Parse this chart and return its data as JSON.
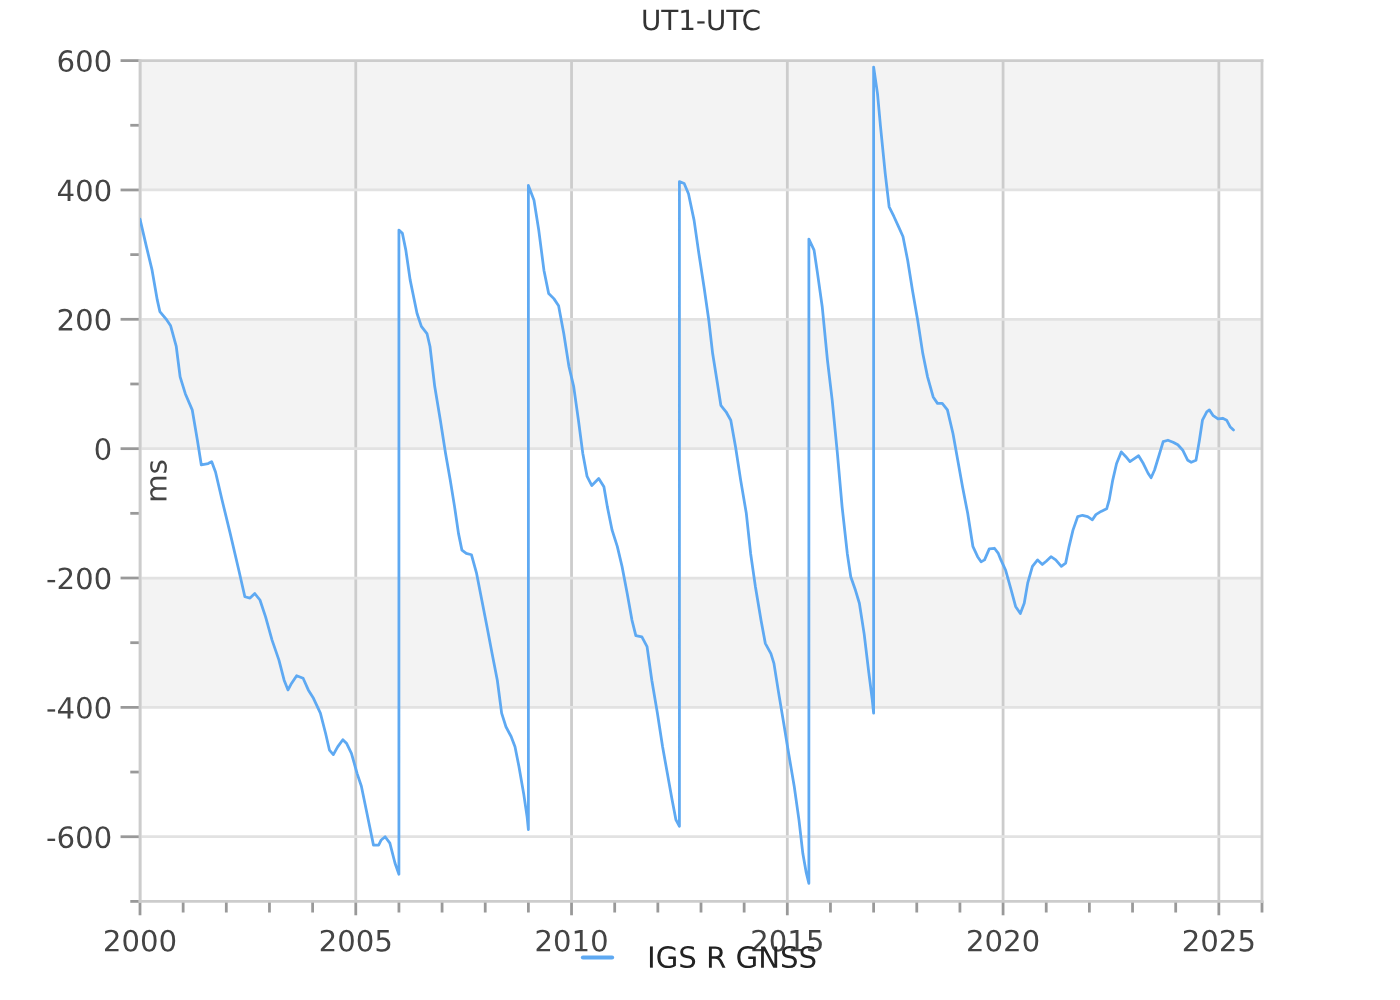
{
  "chart_data": {
    "type": "line",
    "title": "UT1-UTC",
    "ylabel": "ms",
    "x": [
      2000.0,
      2000.15,
      2000.28,
      2000.4,
      2000.46,
      2000.62,
      2000.71,
      2000.84,
      2000.93,
      2001.05,
      2001.21,
      2001.33,
      2001.42,
      2001.58,
      2001.66,
      2001.75,
      2001.9,
      2002.09,
      2002.29,
      2002.43,
      2002.55,
      2002.66,
      2002.78,
      2002.91,
      2003.06,
      2003.22,
      2003.34,
      2003.43,
      2003.51,
      2003.63,
      2003.78,
      2003.9,
      2004.02,
      2004.18,
      2004.3,
      2004.39,
      2004.48,
      2004.58,
      2004.7,
      2004.79,
      2004.9,
      2005.03,
      2005.13,
      2005.26,
      2005.41,
      2005.53,
      2005.59,
      2005.68,
      2005.79,
      2005.91,
      2006.0,
      2006.0,
      2006.08,
      2006.16,
      2006.26,
      2006.34,
      2006.42,
      2006.52,
      2006.65,
      2006.72,
      2006.83,
      2006.96,
      2007.08,
      2007.19,
      2007.29,
      2007.38,
      2007.46,
      2007.56,
      2007.68,
      2007.8,
      2007.92,
      2008.04,
      2008.16,
      2008.28,
      2008.38,
      2008.48,
      2008.6,
      2008.69,
      2008.78,
      2008.89,
      2008.97,
      2009.0,
      2009.0,
      2009.13,
      2009.24,
      2009.36,
      2009.47,
      2009.59,
      2009.7,
      2009.82,
      2009.94,
      2010.05,
      2010.16,
      2010.26,
      2010.36,
      2010.47,
      2010.63,
      2010.75,
      2010.83,
      2010.94,
      2011.06,
      2011.17,
      2011.29,
      2011.4,
      2011.49,
      2011.63,
      2011.75,
      2011.86,
      2011.99,
      2012.11,
      2012.22,
      2012.33,
      2012.42,
      2012.5,
      2012.5,
      2012.61,
      2012.71,
      2012.84,
      2012.95,
      2013.07,
      2013.18,
      2013.27,
      2013.38,
      2013.46,
      2013.58,
      2013.69,
      2013.8,
      2013.92,
      2014.05,
      2014.15,
      2014.26,
      2014.39,
      2014.49,
      2014.62,
      2014.69,
      2014.8,
      2014.93,
      2015.03,
      2015.16,
      2015.27,
      2015.36,
      2015.44,
      2015.5,
      2015.5,
      2015.62,
      2015.7,
      2015.81,
      2015.93,
      2016.04,
      2016.16,
      2016.27,
      2016.39,
      2016.47,
      2016.58,
      2016.67,
      2016.78,
      2016.89,
      2016.97,
      2017.0,
      2017.0,
      2017.09,
      2017.16,
      2017.27,
      2017.36,
      2017.47,
      2017.58,
      2017.68,
      2017.79,
      2017.9,
      2018.02,
      2018.14,
      2018.25,
      2018.38,
      2018.48,
      2018.59,
      2018.71,
      2018.84,
      2018.95,
      2019.06,
      2019.18,
      2019.3,
      2019.41,
      2019.49,
      2019.57,
      2019.68,
      2019.8,
      2019.89,
      2019.95,
      2020.06,
      2020.19,
      2020.29,
      2020.4,
      2020.49,
      2020.57,
      2020.68,
      2020.8,
      2020.91,
      2021.0,
      2021.11,
      2021.22,
      2021.35,
      2021.45,
      2021.53,
      2021.62,
      2021.73,
      2021.84,
      2021.96,
      2022.07,
      2022.15,
      2022.27,
      2022.4,
      2022.46,
      2022.54,
      2022.63,
      2022.74,
      2022.84,
      2022.94,
      2023.05,
      2023.14,
      2023.25,
      2023.36,
      2023.43,
      2023.51,
      2023.62,
      2023.71,
      2023.82,
      2023.94,
      2024.05,
      2024.16,
      2024.28,
      2024.36,
      2024.47,
      2024.55,
      2024.62,
      2024.72,
      2024.78,
      2024.87,
      2024.98,
      2025.09,
      2025.18,
      2025.26,
      2025.34
    ],
    "series": [
      {
        "name": "IGS R GNSS",
        "color": "#5ea9f2",
        "values": [
          355,
          312,
          276,
          230,
          212,
          199,
          190,
          158,
          111,
          85,
          60,
          13,
          -25,
          -23,
          -20,
          -36,
          -79,
          -131,
          -188,
          -229,
          -231,
          -224,
          -234,
          -260,
          -296,
          -327,
          -358,
          -373,
          -363,
          -351,
          -355,
          -373,
          -386,
          -409,
          -440,
          -466,
          -473,
          -461,
          -450,
          -456,
          -471,
          -502,
          -522,
          -564,
          -613,
          -613,
          -605,
          -600,
          -610,
          -641,
          -658,
          338,
          333,
          307,
          261,
          235,
          209,
          189,
          178,
          158,
          96,
          44,
          -7,
          -49,
          -90,
          -131,
          -157,
          -162,
          -164,
          -193,
          -234,
          -275,
          -317,
          -358,
          -409,
          -430,
          -445,
          -461,
          -491,
          -533,
          -569,
          -589,
          407,
          384,
          338,
          276,
          240,
          232,
          221,
          178,
          127,
          96,
          44,
          -7,
          -43,
          -57,
          -46,
          -59,
          -90,
          -126,
          -151,
          -182,
          -224,
          -265,
          -289,
          -291,
          -306,
          -358,
          -409,
          -461,
          -502,
          -543,
          -574,
          -584,
          413,
          410,
          394,
          353,
          302,
          250,
          199,
          147,
          101,
          67,
          57,
          44,
          3,
          -49,
          -100,
          -162,
          -213,
          -265,
          -301,
          -317,
          -332,
          -378,
          -430,
          -471,
          -522,
          -574,
          -626,
          -656,
          -672,
          324,
          307,
          271,
          219,
          137,
          75,
          -7,
          -90,
          -162,
          -198,
          -219,
          -239,
          -286,
          -347,
          -389,
          -409,
          590,
          549,
          498,
          425,
          374,
          359,
          343,
          328,
          291,
          245,
          199,
          147,
          111,
          80,
          70,
          70,
          60,
          23,
          -18,
          -59,
          -100,
          -151,
          -167,
          -175,
          -172,
          -155,
          -154,
          -162,
          -172,
          -188,
          -219,
          -244,
          -255,
          -239,
          -208,
          -182,
          -172,
          -179,
          -174,
          -167,
          -172,
          -182,
          -177,
          -151,
          -126,
          -105,
          -103,
          -105,
          -110,
          -102,
          -97,
          -93,
          -79,
          -49,
          -23,
          -5,
          -12,
          -20,
          -15,
          -11,
          -23,
          -38,
          -45,
          -33,
          -9,
          11,
          13,
          10,
          6,
          -2,
          -18,
          -21,
          -18,
          13,
          44,
          57,
          60,
          51,
          46,
          47,
          44,
          34,
          29
        ]
      }
    ],
    "xlim": [
      2000,
      2026
    ],
    "xticks": [
      2000,
      {
        "value": 2001,
        "label": null
      },
      {
        "value": 2002,
        "label": null
      },
      {
        "value": 2003,
        "label": null
      },
      {
        "value": 2004,
        "label": null
      },
      2005,
      {
        "value": 2006,
        "label": null
      },
      {
        "value": 2007,
        "label": null
      },
      {
        "value": 2008,
        "label": null
      },
      {
        "value": 2009,
        "label": null
      },
      2010,
      {
        "value": 2011,
        "label": null
      },
      {
        "value": 2012,
        "label": null
      },
      {
        "value": 2013,
        "label": null
      },
      {
        "value": 2014,
        "label": null
      },
      2015,
      {
        "value": 2016,
        "label": null
      },
      {
        "value": 2017,
        "label": null
      },
      {
        "value": 2018,
        "label": null
      },
      {
        "value": 2019,
        "label": null
      },
      2020,
      {
        "value": 2021,
        "label": null
      },
      {
        "value": 2022,
        "label": null
      },
      {
        "value": 2023,
        "label": null
      },
      {
        "value": 2024,
        "label": null
      },
      2025,
      {
        "value": 2026,
        "label": null
      }
    ],
    "ylim": [
      -700,
      600
    ],
    "yticks": [
      {
        "value": -700,
        "label": null
      },
      -600,
      {
        "value": -500,
        "label": null
      },
      -400,
      {
        "value": -300,
        "label": null
      },
      -200,
      {
        "value": -100,
        "label": null
      },
      0,
      {
        "value": 100,
        "label": null
      },
      200,
      {
        "value": 300,
        "label": null
      },
      400,
      {
        "value": 500,
        "label": null
      },
      600
    ],
    "bands": [
      {
        "axis": "y",
        "from": 400,
        "to": 600,
        "color": "#f3f3f3"
      },
      {
        "axis": "y",
        "from": 0,
        "to": 200,
        "color": "#f3f3f3"
      },
      {
        "axis": "y",
        "from": -400,
        "to": -200,
        "color": "#f3f3f3"
      }
    ],
    "grid": true,
    "legend": "bottom"
  }
}
